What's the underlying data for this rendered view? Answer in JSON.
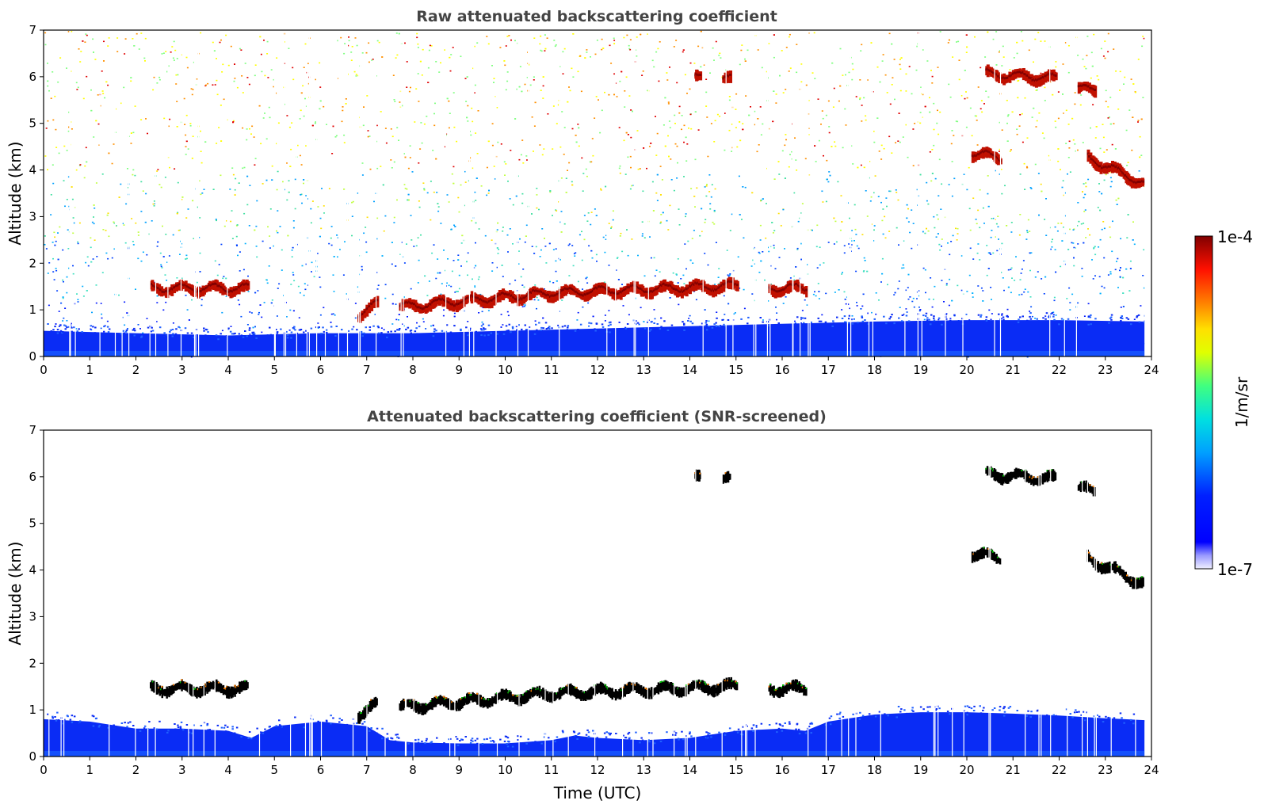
{
  "chart_data": [
    {
      "type": "heatmap",
      "title": "Raw attenuated backscattering coefficient",
      "xlabel": "",
      "ylabel": "Altitude (km)",
      "xlim": [
        0,
        24
      ],
      "ylim": [
        0,
        7
      ],
      "xticks": [
        "0",
        "1",
        "2",
        "3",
        "4",
        "5",
        "6",
        "7",
        "8",
        "9",
        "10",
        "11",
        "12",
        "13",
        "14",
        "15",
        "16",
        "17",
        "18",
        "19",
        "20",
        "21",
        "22",
        "23",
        "24"
      ],
      "yticks": [
        "0",
        "1",
        "2",
        "3",
        "4",
        "5",
        "6",
        "7"
      ],
      "data_end_time": 23.85,
      "noise": true,
      "boundary_layer": [
        [
          0,
          0.55
        ],
        [
          2,
          0.5
        ],
        [
          4,
          0.45
        ],
        [
          6,
          0.5
        ],
        [
          8,
          0.5
        ],
        [
          10,
          0.55
        ],
        [
          12,
          0.6
        ],
        [
          14,
          0.65
        ],
        [
          16,
          0.7
        ],
        [
          18,
          0.75
        ],
        [
          20,
          0.78
        ],
        [
          22,
          0.78
        ],
        [
          23.85,
          0.75
        ]
      ],
      "features": [
        {
          "name": "cloud-layer-low-1",
          "x": [
            2.3,
            4.4
          ],
          "y": [
            1.45,
            1.45
          ]
        },
        {
          "name": "cloud-layer-low-2",
          "x": [
            6.8,
            7.2
          ],
          "y": [
            0.9,
            1.1
          ]
        },
        {
          "name": "cloud-layer-low-3",
          "x": [
            7.7,
            11.0
          ],
          "y": [
            1.05,
            1.35
          ]
        },
        {
          "name": "cloud-layer-low-4",
          "x": [
            11.0,
            15.0
          ],
          "y": [
            1.35,
            1.5
          ]
        },
        {
          "name": "cloud-layer-low-5",
          "x": [
            15.7,
            16.5
          ],
          "y": [
            1.45,
            1.45
          ]
        },
        {
          "name": "cirrus-1",
          "x": [
            14.1,
            14.2
          ],
          "y": [
            5.95,
            5.95
          ]
        },
        {
          "name": "cirrus-2",
          "x": [
            14.7,
            14.85
          ],
          "y": [
            5.92,
            5.92
          ]
        },
        {
          "name": "cirrus-3",
          "x": [
            20.4,
            21.9
          ],
          "y": [
            6.05,
            5.95
          ]
        },
        {
          "name": "cirrus-4",
          "x": [
            22.4,
            22.75
          ],
          "y": [
            5.72,
            5.72
          ]
        },
        {
          "name": "cloud-mid-1",
          "x": [
            20.1,
            20.7
          ],
          "y": [
            4.35,
            4.25
          ]
        },
        {
          "name": "cloud-mid-2",
          "x": [
            22.6,
            23.8
          ],
          "y": [
            4.25,
            3.7
          ]
        }
      ]
    },
    {
      "type": "heatmap",
      "title": "Attenuated backscattering coefficient (SNR-screened)",
      "xlabel": "Time (UTC)",
      "ylabel": "Altitude (km)",
      "xlim": [
        0,
        24
      ],
      "ylim": [
        0,
        7
      ],
      "xticks": [
        "0",
        "1",
        "2",
        "3",
        "4",
        "5",
        "6",
        "7",
        "8",
        "9",
        "10",
        "11",
        "12",
        "13",
        "14",
        "15",
        "16",
        "17",
        "18",
        "19",
        "20",
        "21",
        "22",
        "23",
        "24"
      ],
      "yticks": [
        "0",
        "1",
        "2",
        "3",
        "4",
        "5",
        "6",
        "7"
      ],
      "data_end_time": 23.85,
      "noise": false,
      "boundary_layer": [
        [
          0,
          0.8
        ],
        [
          1,
          0.75
        ],
        [
          2,
          0.6
        ],
        [
          3,
          0.6
        ],
        [
          4,
          0.55
        ],
        [
          4.5,
          0.4
        ],
        [
          5,
          0.65
        ],
        [
          6,
          0.75
        ],
        [
          7,
          0.65
        ],
        [
          7.5,
          0.35
        ],
        [
          8,
          0.3
        ],
        [
          9,
          0.28
        ],
        [
          10,
          0.28
        ],
        [
          11,
          0.35
        ],
        [
          11.5,
          0.45
        ],
        [
          12,
          0.4
        ],
        [
          13,
          0.35
        ],
        [
          14,
          0.4
        ],
        [
          15,
          0.55
        ],
        [
          16,
          0.6
        ],
        [
          16.5,
          0.55
        ],
        [
          17,
          0.75
        ],
        [
          18,
          0.9
        ],
        [
          19,
          0.95
        ],
        [
          20,
          0.95
        ],
        [
          21,
          0.92
        ],
        [
          22,
          0.88
        ],
        [
          23,
          0.82
        ],
        [
          23.85,
          0.78
        ]
      ],
      "features": [
        {
          "name": "cloud-layer-low-1",
          "x": [
            2.3,
            4.4
          ],
          "y": [
            1.45,
            1.45
          ]
        },
        {
          "name": "cloud-layer-low-2",
          "x": [
            6.8,
            7.2
          ],
          "y": [
            0.9,
            1.1
          ]
        },
        {
          "name": "cloud-layer-low-3",
          "x": [
            7.7,
            11.0
          ],
          "y": [
            1.05,
            1.35
          ]
        },
        {
          "name": "cloud-layer-low-4",
          "x": [
            11.0,
            15.0
          ],
          "y": [
            1.35,
            1.5
          ]
        },
        {
          "name": "cloud-layer-low-5",
          "x": [
            15.7,
            16.5
          ],
          "y": [
            1.45,
            1.45
          ]
        },
        {
          "name": "cirrus-1",
          "x": [
            14.1,
            14.2
          ],
          "y": [
            5.95,
            5.95
          ]
        },
        {
          "name": "cirrus-2",
          "x": [
            14.7,
            14.85
          ],
          "y": [
            5.92,
            5.92
          ]
        },
        {
          "name": "cirrus-3",
          "x": [
            20.4,
            21.9
          ],
          "y": [
            6.05,
            5.95
          ]
        },
        {
          "name": "cirrus-4",
          "x": [
            22.4,
            22.75
          ],
          "y": [
            5.72,
            5.72
          ]
        },
        {
          "name": "cloud-mid-1",
          "x": [
            20.1,
            20.7
          ],
          "y": [
            4.35,
            4.25
          ]
        },
        {
          "name": "cloud-mid-2",
          "x": [
            22.6,
            23.8
          ],
          "y": [
            4.25,
            3.7
          ]
        }
      ]
    }
  ],
  "colorbar": {
    "max_label": "1e-4",
    "min_label": "1e-7",
    "unit_label": "1/m/sr",
    "colors": [
      "#e8e8ff",
      "#0000ff",
      "#00c8ff",
      "#00ff80",
      "#ffff00",
      "#ff8000",
      "#ff0000",
      "#800000"
    ]
  }
}
